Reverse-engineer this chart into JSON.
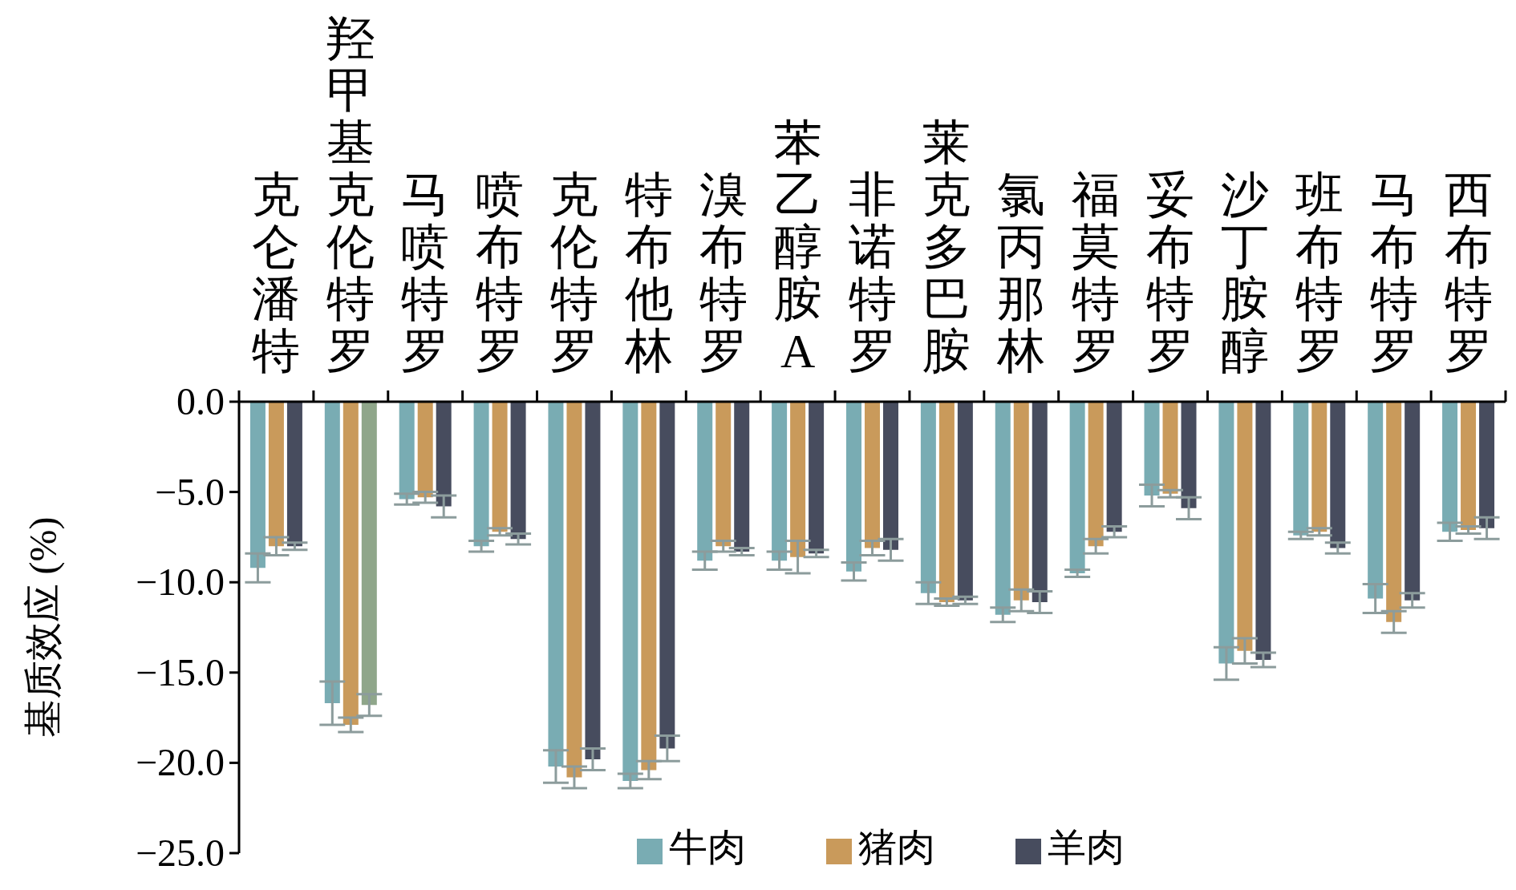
{
  "chart_data": {
    "type": "bar",
    "ylabel": "基质效应 (%)",
    "categories": [
      "克仑潘特",
      "羟甲基克伦特罗",
      "马喷特罗",
      "喷布特罗",
      "克伦特罗",
      "特布他林",
      "溴布特罗",
      "苯乙醇胺A",
      "非诺特罗",
      "莱克多巴胺",
      "氯丙那林",
      "福莫特罗",
      "妥布特罗",
      "沙丁胺醇",
      "班布特罗",
      "马布特罗",
      "西布特罗"
    ],
    "series": [
      {
        "name": "牛肉",
        "color": "#79acb3",
        "values": [
          -9.2,
          -16.7,
          -5.4,
          -8.0,
          -20.2,
          -21.0,
          -8.8,
          -8.8,
          -9.4,
          -10.6,
          -11.8,
          -9.5,
          -5.2,
          -14.5,
          -7.4,
          -10.9,
          -7.2
        ],
        "errors": [
          0.8,
          1.2,
          0.3,
          0.3,
          0.9,
          0.4,
          0.5,
          0.5,
          0.5,
          0.6,
          0.4,
          0.2,
          0.6,
          0.9,
          0.2,
          0.8,
          0.5
        ]
      },
      {
        "name": "猪肉",
        "color": "#c99a5b",
        "values": [
          -8.0,
          -17.9,
          -5.3,
          -7.2,
          -20.8,
          -20.4,
          -8.0,
          -8.6,
          -8.1,
          -11.1,
          -11.0,
          -8.0,
          -5.1,
          -13.8,
          -7.2,
          -12.2,
          -7.1
        ],
        "errors": [
          0.5,
          0.4,
          0.3,
          0.2,
          0.6,
          0.5,
          0.3,
          0.9,
          0.4,
          0.2,
          0.6,
          0.4,
          0.2,
          0.7,
          0.2,
          0.6,
          0.2
        ]
      },
      {
        "name": "羊肉",
        "color": "#474c5e",
        "colors": [
          "#474c5e",
          "#8fa68a",
          "#474c5e",
          "#474c5e",
          "#474c5e",
          "#474c5e",
          "#474c5e",
          "#474c5e",
          "#474c5e",
          "#474c5e",
          "#474c5e",
          "#474c5e",
          "#474c5e",
          "#474c5e",
          "#474c5e",
          "#474c5e",
          "#474c5e"
        ],
        "values": [
          -8.0,
          -16.8,
          -5.8,
          -7.6,
          -19.8,
          -19.2,
          -8.3,
          -8.4,
          -8.2,
          -11.0,
          -11.1,
          -7.2,
          -5.9,
          -14.3,
          -8.1,
          -11.0,
          -7.0
        ],
        "errors": [
          0.2,
          0.6,
          0.6,
          0.3,
          0.6,
          0.7,
          0.2,
          0.2,
          0.6,
          0.2,
          0.6,
          0.3,
          0.6,
          0.4,
          0.3,
          0.4,
          0.6
        ]
      }
    ],
    "ylim": [
      -25,
      0
    ],
    "yticks": [
      {
        "value": 0,
        "label": "0.0"
      },
      {
        "value": -5,
        "label": "−5.0"
      },
      {
        "value": -10,
        "label": "−10.0"
      },
      {
        "value": -15,
        "label": "−15.0"
      },
      {
        "value": -20,
        "label": "−20.0"
      },
      {
        "value": -25,
        "label": "−25.0"
      }
    ],
    "legend": "bottom"
  }
}
